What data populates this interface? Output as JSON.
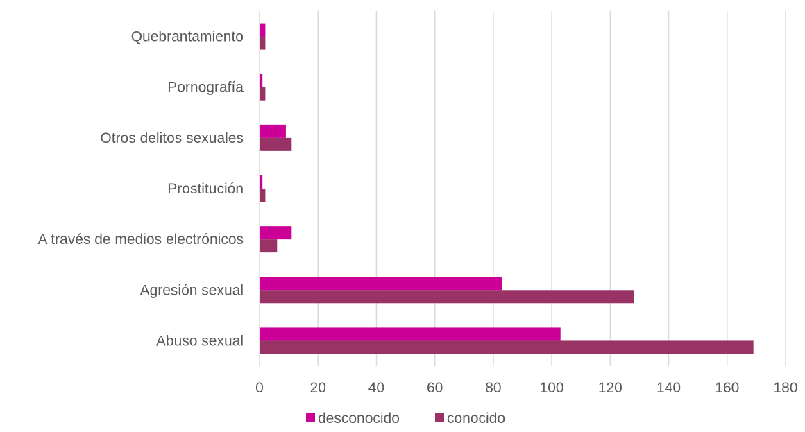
{
  "chart_data": {
    "type": "bar",
    "orientation": "horizontal",
    "categories": [
      "Quebrantamiento",
      "Pornografía",
      "Otros delitos sexuales",
      "Prostitución",
      "A través de medios electrónicos",
      "Agresión sexual",
      "Abuso sexual"
    ],
    "series": [
      {
        "name": "desconocido",
        "color": "#cc0099",
        "values": [
          2,
          1,
          9,
          1,
          11,
          83,
          103
        ]
      },
      {
        "name": "conocido",
        "color": "#993366",
        "values": [
          2,
          2,
          11,
          2,
          6,
          128,
          169
        ]
      }
    ],
    "xlim": [
      0,
      180
    ],
    "xticks": [
      0,
      20,
      40,
      60,
      80,
      100,
      120,
      140,
      160,
      180
    ],
    "xtick_labels": [
      "0",
      "20",
      "40",
      "60",
      "80",
      "100",
      "120",
      "140",
      "160",
      "180"
    ],
    "grid": "vertical",
    "legend_position": "bottom",
    "title": "",
    "xlabel": "",
    "ylabel": ""
  }
}
